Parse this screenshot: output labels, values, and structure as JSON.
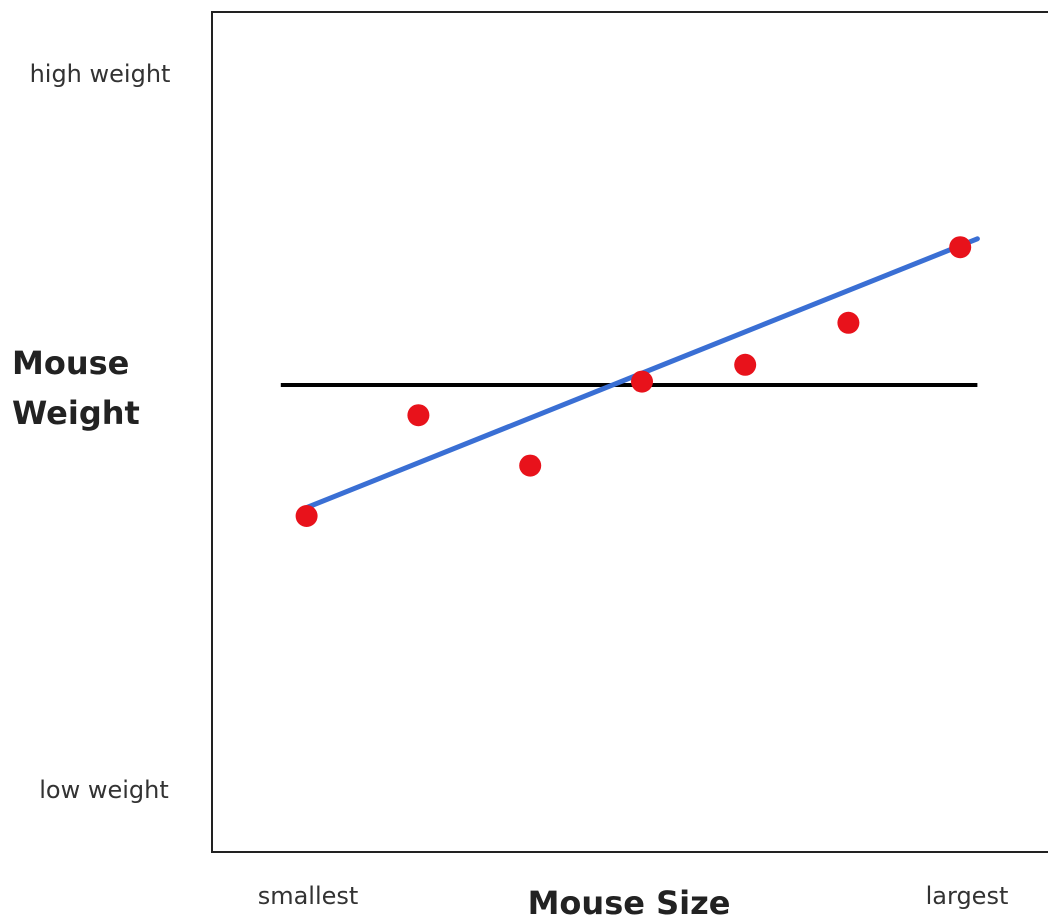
{
  "chart_data": {
    "type": "scatter",
    "xlabel": "Mouse Size",
    "ylabel_lines": [
      "Mouse",
      "Weight"
    ],
    "x_tick_labels": {
      "min": "smallest",
      "max": "largest"
    },
    "y_tick_labels": {
      "max": "high weight",
      "min": "low weight"
    },
    "xlim": [
      0,
      1
    ],
    "ylim": [
      0,
      1
    ],
    "grid": false,
    "legend": "none",
    "points": [
      {
        "x": 0.11,
        "y": 0.4
      },
      {
        "x": 0.24,
        "y": 0.52
      },
      {
        "x": 0.37,
        "y": 0.46
      },
      {
        "x": 0.5,
        "y": 0.56
      },
      {
        "x": 0.62,
        "y": 0.58
      },
      {
        "x": 0.74,
        "y": 0.63
      },
      {
        "x": 0.87,
        "y": 0.72
      }
    ],
    "mean_line": {
      "y": 0.556,
      "x_range": [
        0.08,
        0.89
      ]
    },
    "fit_line": {
      "x1": 0.11,
      "y1": 0.41,
      "x2": 0.89,
      "y2": 0.73
    },
    "colors": {
      "points": "#e8121b",
      "fit_line": "#3a6fd4",
      "mean_line": "#000000",
      "frame": "#222222"
    }
  }
}
